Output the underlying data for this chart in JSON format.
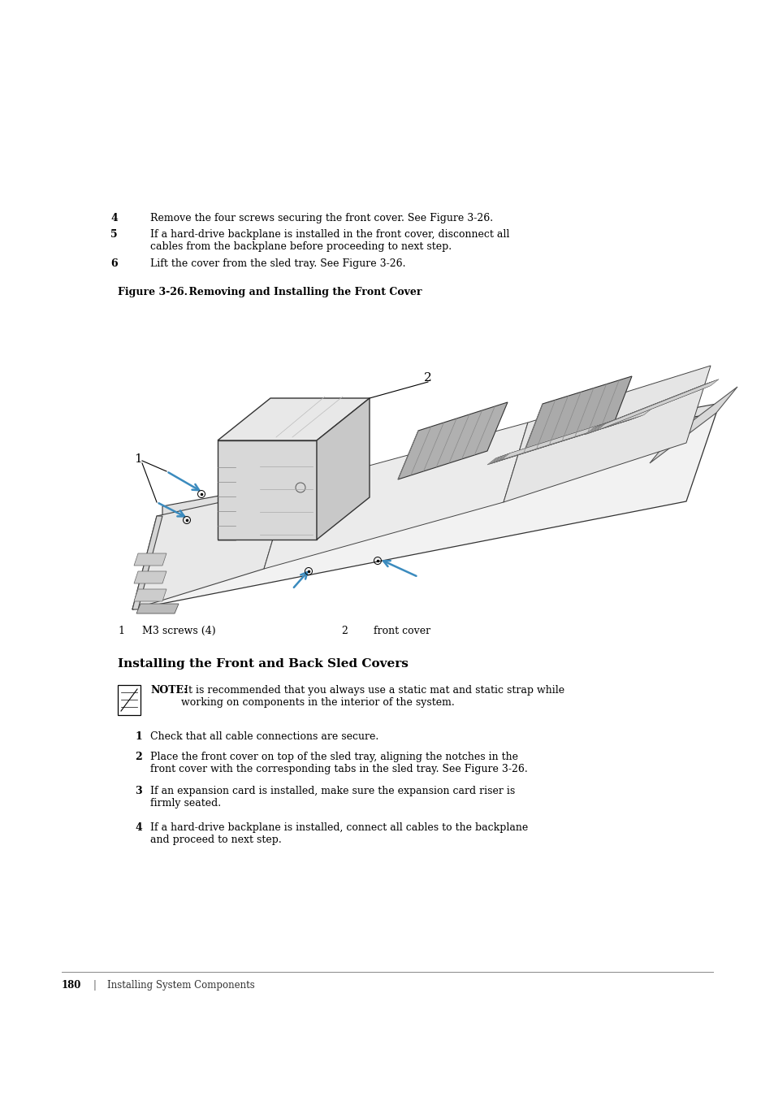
{
  "bg_color": "#ffffff",
  "steps_section1": [
    {
      "num": "4",
      "text": "Remove the four screws securing the front cover. See Figure 3-26."
    },
    {
      "num": "5",
      "text": "If a hard-drive backplane is installed in the front cover, disconnect all\ncables from the backplane before proceeding to next step."
    },
    {
      "num": "6",
      "text": "Lift the cover from the sled tray. See Figure 3-26."
    }
  ],
  "figure_caption_bold": "Figure 3-26.",
  "figure_caption_rest": "    Removing and Installing the Front Cover",
  "callout1": "1",
  "callout2": "2",
  "legend1_num": "1",
  "legend1_text": "M3 screws (4)",
  "legend2_num": "2",
  "legend2_text": "front cover",
  "section_title": "Installing the Front and Back Sled Covers",
  "note_bold": "NOTE:",
  "note_text": " It is recommended that you always use a static mat and static strap while\nworking on components in the interior of the system.",
  "steps_section2": [
    {
      "num": "1",
      "text": "Check that all cable connections are secure."
    },
    {
      "num": "2",
      "text": "Place the front cover on top of the sled tray, aligning the notches in the\nfront cover with the corresponding tabs in the sled tray. See Figure 3-26."
    },
    {
      "num": "3",
      "text": "If an expansion card is installed, make sure the expansion card riser is\nfirmly seated."
    },
    {
      "num": "4",
      "text": "If a hard-drive backplane is installed, connect all cables to the backplane\nand proceed to next step."
    }
  ],
  "page_num": "180",
  "page_footer": "Installing System Components",
  "arrow_color": "#3B8BBE",
  "text_color": "#000000"
}
